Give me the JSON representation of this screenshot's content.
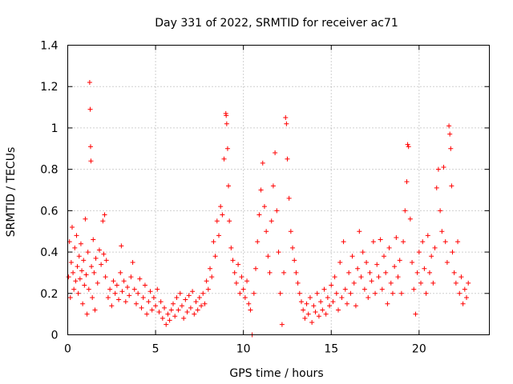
{
  "chart_data": {
    "type": "scatter",
    "title": "Day 331 of 2022, SRMTID for receiver ac71",
    "xlabel": "GPS time / hours",
    "ylabel": "SRMTID / TECUs",
    "xlim": [
      0,
      24
    ],
    "ylim": [
      0,
      1.4
    ],
    "xticks": [
      0,
      5,
      10,
      15,
      20
    ],
    "xtick_labels": [
      "0",
      "5",
      "10",
      "15",
      "20"
    ],
    "yticks": [
      0,
      0.2,
      0.4,
      0.6,
      0.8,
      1.0,
      1.2,
      1.4
    ],
    "ytick_labels": [
      "0",
      "0.2",
      "0.4",
      "0.6",
      "0.8",
      "1",
      "1.2",
      "1.4"
    ],
    "grid": true,
    "marker": "+",
    "series_color": "#ff0000",
    "series": [
      {
        "name": "SRMTID",
        "points": [
          [
            0.05,
            0.28
          ],
          [
            0.1,
            0.45
          ],
          [
            0.15,
            0.18
          ],
          [
            0.2,
            0.35
          ],
          [
            0.25,
            0.52
          ],
          [
            0.3,
            0.3
          ],
          [
            0.35,
            0.22
          ],
          [
            0.4,
            0.42
          ],
          [
            0.45,
            0.26
          ],
          [
            0.5,
            0.48
          ],
          [
            0.55,
            0.33
          ],
          [
            0.6,
            0.2
          ],
          [
            0.65,
            0.38
          ],
          [
            0.7,
            0.27
          ],
          [
            0.75,
            0.44
          ],
          [
            0.8,
            0.31
          ],
          [
            0.85,
            0.15
          ],
          [
            0.9,
            0.36
          ],
          [
            0.95,
            0.24
          ],
          [
            1.0,
            0.56
          ],
          [
            1.05,
            0.29
          ],
          [
            1.1,
            0.1
          ],
          [
            1.15,
            0.4
          ],
          [
            1.2,
            0.22
          ],
          [
            1.25,
            1.22
          ],
          [
            1.28,
            1.09
          ],
          [
            1.3,
            0.91
          ],
          [
            1.32,
            0.84
          ],
          [
            1.35,
            0.33
          ],
          [
            1.4,
            0.18
          ],
          [
            1.45,
            0.46
          ],
          [
            1.5,
            0.3
          ],
          [
            1.55,
            0.12
          ],
          [
            1.6,
            0.37
          ],
          [
            1.7,
            0.25
          ],
          [
            1.8,
            0.41
          ],
          [
            1.9,
            0.34
          ],
          [
            2.0,
            0.55
          ],
          [
            2.05,
            0.39
          ],
          [
            2.1,
            0.58
          ],
          [
            2.15,
            0.28
          ],
          [
            2.2,
            0.36
          ],
          [
            2.3,
            0.18
          ],
          [
            2.4,
            0.22
          ],
          [
            2.5,
            0.14
          ],
          [
            2.6,
            0.26
          ],
          [
            2.7,
            0.2
          ],
          [
            2.8,
            0.24
          ],
          [
            2.9,
            0.17
          ],
          [
            3.0,
            0.3
          ],
          [
            3.05,
            0.43
          ],
          [
            3.1,
            0.21
          ],
          [
            3.2,
            0.26
          ],
          [
            3.3,
            0.16
          ],
          [
            3.4,
            0.23
          ],
          [
            3.5,
            0.19
          ],
          [
            3.6,
            0.28
          ],
          [
            3.7,
            0.35
          ],
          [
            3.8,
            0.22
          ],
          [
            3.9,
            0.15
          ],
          [
            4.0,
            0.2
          ],
          [
            4.1,
            0.27
          ],
          [
            4.2,
            0.13
          ],
          [
            4.3,
            0.18
          ],
          [
            4.4,
            0.24
          ],
          [
            4.5,
            0.1
          ],
          [
            4.6,
            0.16
          ],
          [
            4.7,
            0.21
          ],
          [
            4.8,
            0.12
          ],
          [
            4.9,
            0.18
          ],
          [
            5.0,
            0.14
          ],
          [
            5.1,
            0.22
          ],
          [
            5.2,
            0.11
          ],
          [
            5.3,
            0.16
          ],
          [
            5.4,
            0.08
          ],
          [
            5.5,
            0.13
          ],
          [
            5.6,
            0.05
          ],
          [
            5.7,
            0.1
          ],
          [
            5.8,
            0.07
          ],
          [
            5.9,
            0.12
          ],
          [
            6.0,
            0.15
          ],
          [
            6.1,
            0.09
          ],
          [
            6.2,
            0.18
          ],
          [
            6.3,
            0.12
          ],
          [
            6.4,
            0.2
          ],
          [
            6.5,
            0.14
          ],
          [
            6.6,
            0.08
          ],
          [
            6.7,
            0.17
          ],
          [
            6.8,
            0.11
          ],
          [
            6.9,
            0.19
          ],
          [
            7.0,
            0.13
          ],
          [
            7.1,
            0.21
          ],
          [
            7.2,
            0.1
          ],
          [
            7.3,
            0.16
          ],
          [
            7.4,
            0.12
          ],
          [
            7.5,
            0.18
          ],
          [
            7.6,
            0.14
          ],
          [
            7.7,
            0.2
          ],
          [
            7.8,
            0.15
          ],
          [
            7.9,
            0.26
          ],
          [
            8.0,
            0.22
          ],
          [
            8.1,
            0.32
          ],
          [
            8.2,
            0.28
          ],
          [
            8.3,
            0.45
          ],
          [
            8.4,
            0.38
          ],
          [
            8.5,
            0.55
          ],
          [
            8.6,
            0.48
          ],
          [
            8.7,
            0.62
          ],
          [
            8.8,
            0.58
          ],
          [
            8.9,
            0.85
          ],
          [
            9.0,
            1.07
          ],
          [
            9.02,
            1.06
          ],
          [
            9.05,
            1.02
          ],
          [
            9.1,
            0.9
          ],
          [
            9.15,
            0.72
          ],
          [
            9.2,
            0.55
          ],
          [
            9.3,
            0.42
          ],
          [
            9.4,
            0.36
          ],
          [
            9.5,
            0.3
          ],
          [
            9.6,
            0.25
          ],
          [
            9.7,
            0.34
          ],
          [
            9.8,
            0.2
          ],
          [
            9.9,
            0.28
          ],
          [
            10.0,
            0.22
          ],
          [
            10.1,
            0.18
          ],
          [
            10.2,
            0.26
          ],
          [
            10.3,
            0.15
          ],
          [
            10.4,
            0.12
          ],
          [
            10.5,
            0.0
          ],
          [
            10.6,
            0.2
          ],
          [
            10.7,
            0.32
          ],
          [
            10.8,
            0.45
          ],
          [
            10.9,
            0.58
          ],
          [
            11.0,
            0.7
          ],
          [
            11.1,
            0.83
          ],
          [
            11.2,
            0.62
          ],
          [
            11.3,
            0.5
          ],
          [
            11.4,
            0.38
          ],
          [
            11.5,
            0.3
          ],
          [
            11.6,
            0.55
          ],
          [
            11.7,
            0.72
          ],
          [
            11.8,
            0.88
          ],
          [
            11.9,
            0.6
          ],
          [
            12.0,
            0.4
          ],
          [
            12.1,
            0.2
          ],
          [
            12.2,
            0.05
          ],
          [
            12.3,
            0.3
          ],
          [
            12.4,
            1.05
          ],
          [
            12.45,
            1.02
          ],
          [
            12.5,
            0.85
          ],
          [
            12.6,
            0.66
          ],
          [
            12.7,
            0.5
          ],
          [
            12.8,
            0.42
          ],
          [
            12.9,
            0.36
          ],
          [
            13.0,
            0.3
          ],
          [
            13.1,
            0.25
          ],
          [
            13.2,
            0.2
          ],
          [
            13.3,
            0.16
          ],
          [
            13.4,
            0.12
          ],
          [
            13.5,
            0.08
          ],
          [
            13.6,
            0.15
          ],
          [
            13.7,
            0.1
          ],
          [
            13.8,
            0.18
          ],
          [
            13.9,
            0.06
          ],
          [
            14.0,
            0.14
          ],
          [
            14.1,
            0.11
          ],
          [
            14.2,
            0.2
          ],
          [
            14.3,
            0.09
          ],
          [
            14.4,
            0.16
          ],
          [
            14.5,
            0.12
          ],
          [
            14.6,
            0.22
          ],
          [
            14.7,
            0.1
          ],
          [
            14.8,
            0.18
          ],
          [
            14.9,
            0.14
          ],
          [
            15.0,
            0.24
          ],
          [
            15.1,
            0.16
          ],
          [
            15.2,
            0.28
          ],
          [
            15.3,
            0.2
          ],
          [
            15.4,
            0.12
          ],
          [
            15.5,
            0.35
          ],
          [
            15.6,
            0.18
          ],
          [
            15.7,
            0.45
          ],
          [
            15.8,
            0.22
          ],
          [
            15.9,
            0.15
          ],
          [
            16.0,
            0.3
          ],
          [
            16.1,
            0.2
          ],
          [
            16.2,
            0.38
          ],
          [
            16.3,
            0.25
          ],
          [
            16.4,
            0.14
          ],
          [
            16.5,
            0.32
          ],
          [
            16.6,
            0.5
          ],
          [
            16.7,
            0.28
          ],
          [
            16.8,
            0.4
          ],
          [
            16.9,
            0.22
          ],
          [
            17.0,
            0.35
          ],
          [
            17.1,
            0.18
          ],
          [
            17.2,
            0.3
          ],
          [
            17.3,
            0.26
          ],
          [
            17.4,
            0.45
          ],
          [
            17.5,
            0.2
          ],
          [
            17.6,
            0.34
          ],
          [
            17.7,
            0.28
          ],
          [
            17.8,
            0.46
          ],
          [
            17.9,
            0.22
          ],
          [
            18.0,
            0.38
          ],
          [
            18.1,
            0.3
          ],
          [
            18.2,
            0.15
          ],
          [
            18.3,
            0.42
          ],
          [
            18.4,
            0.25
          ],
          [
            18.5,
            0.2
          ],
          [
            18.6,
            0.33
          ],
          [
            18.7,
            0.47
          ],
          [
            18.8,
            0.28
          ],
          [
            18.9,
            0.36
          ],
          [
            19.0,
            0.2
          ],
          [
            19.1,
            0.45
          ],
          [
            19.2,
            0.6
          ],
          [
            19.3,
            0.74
          ],
          [
            19.35,
            0.92
          ],
          [
            19.4,
            0.91
          ],
          [
            19.5,
            0.56
          ],
          [
            19.6,
            0.35
          ],
          [
            19.7,
            0.22
          ],
          [
            19.8,
            0.1
          ],
          [
            19.9,
            0.3
          ],
          [
            20.0,
            0.4
          ],
          [
            20.1,
            0.25
          ],
          [
            20.2,
            0.45
          ],
          [
            20.3,
            0.32
          ],
          [
            20.4,
            0.2
          ],
          [
            20.5,
            0.48
          ],
          [
            20.6,
            0.3
          ],
          [
            20.7,
            0.38
          ],
          [
            20.8,
            0.25
          ],
          [
            20.9,
            0.42
          ],
          [
            21.0,
            0.71
          ],
          [
            21.1,
            0.8
          ],
          [
            21.2,
            0.6
          ],
          [
            21.3,
            0.5
          ],
          [
            21.4,
            0.81
          ],
          [
            21.5,
            0.45
          ],
          [
            21.6,
            0.35
          ],
          [
            21.7,
            1.01
          ],
          [
            21.75,
            0.97
          ],
          [
            21.8,
            0.9
          ],
          [
            21.85,
            0.72
          ],
          [
            21.9,
            0.4
          ],
          [
            22.0,
            0.3
          ],
          [
            22.1,
            0.25
          ],
          [
            22.2,
            0.45
          ],
          [
            22.3,
            0.2
          ],
          [
            22.4,
            0.28
          ],
          [
            22.5,
            0.15
          ],
          [
            22.6,
            0.22
          ],
          [
            22.7,
            0.18
          ],
          [
            22.8,
            0.25
          ]
        ]
      }
    ]
  }
}
